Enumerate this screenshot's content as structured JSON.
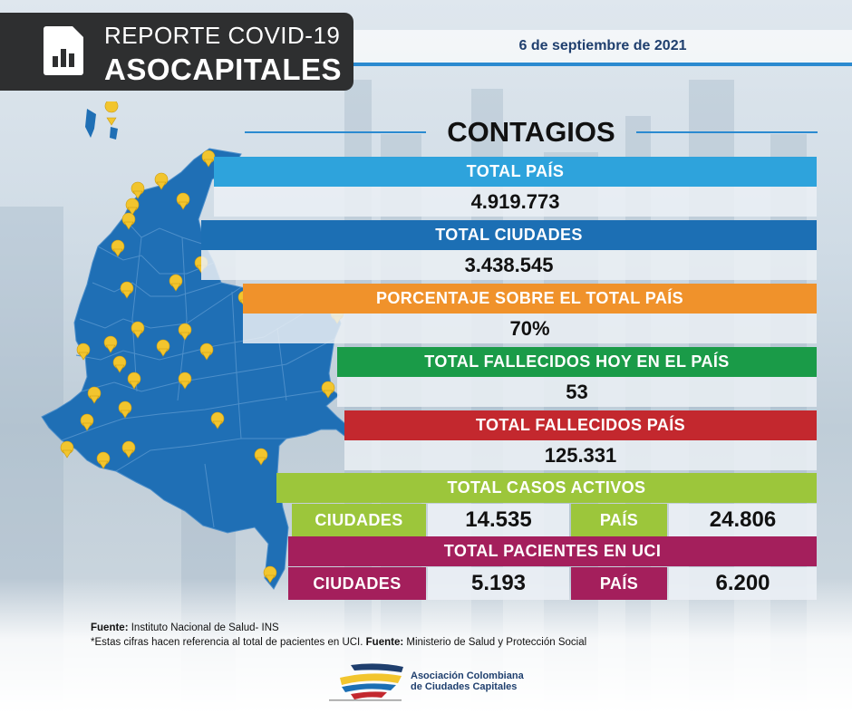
{
  "header": {
    "title_line1": "REPORTE COVID-19",
    "title_line2": "ASOCAPITALES",
    "icon": "bar-chart-document-icon"
  },
  "date": "6 de septiembre de 2021",
  "section_title": "CONTAGIOS",
  "rows": {
    "total_pais": {
      "label": "TOTAL PAÍS",
      "value": "4.919.773",
      "color": "#2ea3dc"
    },
    "total_ciudades": {
      "label": "TOTAL CIUDADES",
      "value": "3.438.545",
      "color": "#1c6fb4"
    },
    "porcentaje": {
      "label": "PORCENTAJE SOBRE EL TOTAL PAÍS",
      "value": "70%",
      "color": "#f0922b"
    },
    "fallecidos_hoy": {
      "label": "TOTAL FALLECIDOS HOY EN EL PAÍS",
      "value": "53",
      "color": "#1a9b48"
    },
    "fallecidos_pais": {
      "label": "TOTAL FALLECIDOS PAÍS",
      "value": "125.331",
      "color": "#c3282e"
    }
  },
  "casos_activos": {
    "label": "TOTAL CASOS ACTIVOS",
    "color": "#9cc63b",
    "ciudades_label": "CIUDADES",
    "ciudades_value": "14.535",
    "pais_label": "PAÍS",
    "pais_value": "24.806"
  },
  "uci": {
    "label": "TOTAL PACIENTES EN UCI",
    "color": "#a41f5c",
    "ciudades_label": "CIUDADES",
    "ciudades_value": "5.193",
    "pais_label": "PAÍS",
    "pais_value": "6.200"
  },
  "footer": {
    "fuente_label": "Fuente:",
    "fuente_text": " Instituto Nacional de Salud- INS",
    "note_text": "*Estas cifras hacen referencia al total de pacientes en UCI. ",
    "note_fuente_label": "Fuente:",
    "note_fuente_text": " Ministerio de Salud y Protección Social"
  },
  "logo": {
    "line1": "Asociación Colombiana",
    "line2": "de Ciudades Capitales"
  },
  "map": {
    "fill_color": "#1f6fb5",
    "pin_color": "#f2c52e",
    "icon": "colombia-map"
  }
}
